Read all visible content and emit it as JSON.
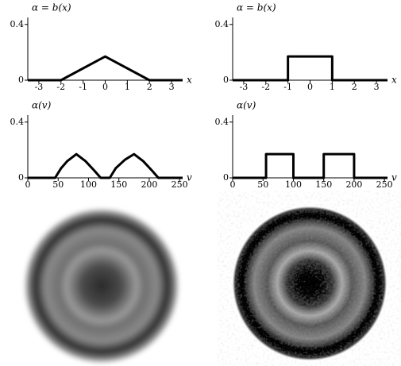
{
  "chart_data": [
    {
      "type": "line",
      "title": "α = b(x)",
      "xlabel": "x",
      "x": [
        -3.5,
        -2,
        0,
        2,
        3.5
      ],
      "series": [
        {
          "color": "#000000",
          "values": [
            0,
            0,
            0.17,
            0,
            0
          ]
        }
      ],
      "xlim": [
        -3.5,
        3.5
      ],
      "ylim": [
        0,
        0.45
      ],
      "xticks": [
        -3,
        -2,
        -1,
        0,
        1,
        2,
        3
      ],
      "yticks": [
        0,
        0.4
      ]
    },
    {
      "type": "line",
      "title": "α = b(x)",
      "xlabel": "x",
      "x": [
        -3.5,
        -1,
        -1,
        1,
        1,
        3.5
      ],
      "series": [
        {
          "color": "#000000",
          "values": [
            0,
            0,
            0.17,
            0.17,
            0,
            0
          ]
        }
      ],
      "xlim": [
        -3.5,
        3.5
      ],
      "ylim": [
        0,
        0.45
      ],
      "xticks": [
        -3,
        -2,
        -1,
        0,
        1,
        2,
        3
      ],
      "yticks": [
        0,
        0.4
      ]
    },
    {
      "type": "line",
      "title": "α(v)",
      "xlabel": "v",
      "x": [
        0,
        45,
        55,
        65,
        80,
        95,
        110,
        120,
        135,
        145,
        160,
        175,
        190,
        205,
        215,
        255
      ],
      "series": [
        {
          "color": "#000000",
          "values": [
            0,
            0,
            0.07,
            0.12,
            0.17,
            0.12,
            0.05,
            0,
            0,
            0.07,
            0.13,
            0.17,
            0.12,
            0.05,
            0,
            0
          ]
        }
      ],
      "xlim": [
        0,
        255
      ],
      "ylim": [
        0,
        0.45
      ],
      "xticks": [
        0,
        50,
        100,
        150,
        200,
        250
      ],
      "yticks": [
        0,
        0.4
      ]
    },
    {
      "type": "line",
      "title": "α(v)",
      "xlabel": "v",
      "x": [
        0,
        55,
        55,
        100,
        100,
        150,
        150,
        200,
        200,
        255
      ],
      "series": [
        {
          "color": "#000000",
          "values": [
            0,
            0,
            0.17,
            0.17,
            0,
            0,
            0.17,
            0.17,
            0,
            0
          ]
        }
      ],
      "xlim": [
        0,
        255
      ],
      "ylim": [
        0,
        0.45
      ],
      "xticks": [
        0,
        50,
        100,
        150,
        200,
        250
      ],
      "yticks": [
        0,
        0.4
      ]
    }
  ]
}
